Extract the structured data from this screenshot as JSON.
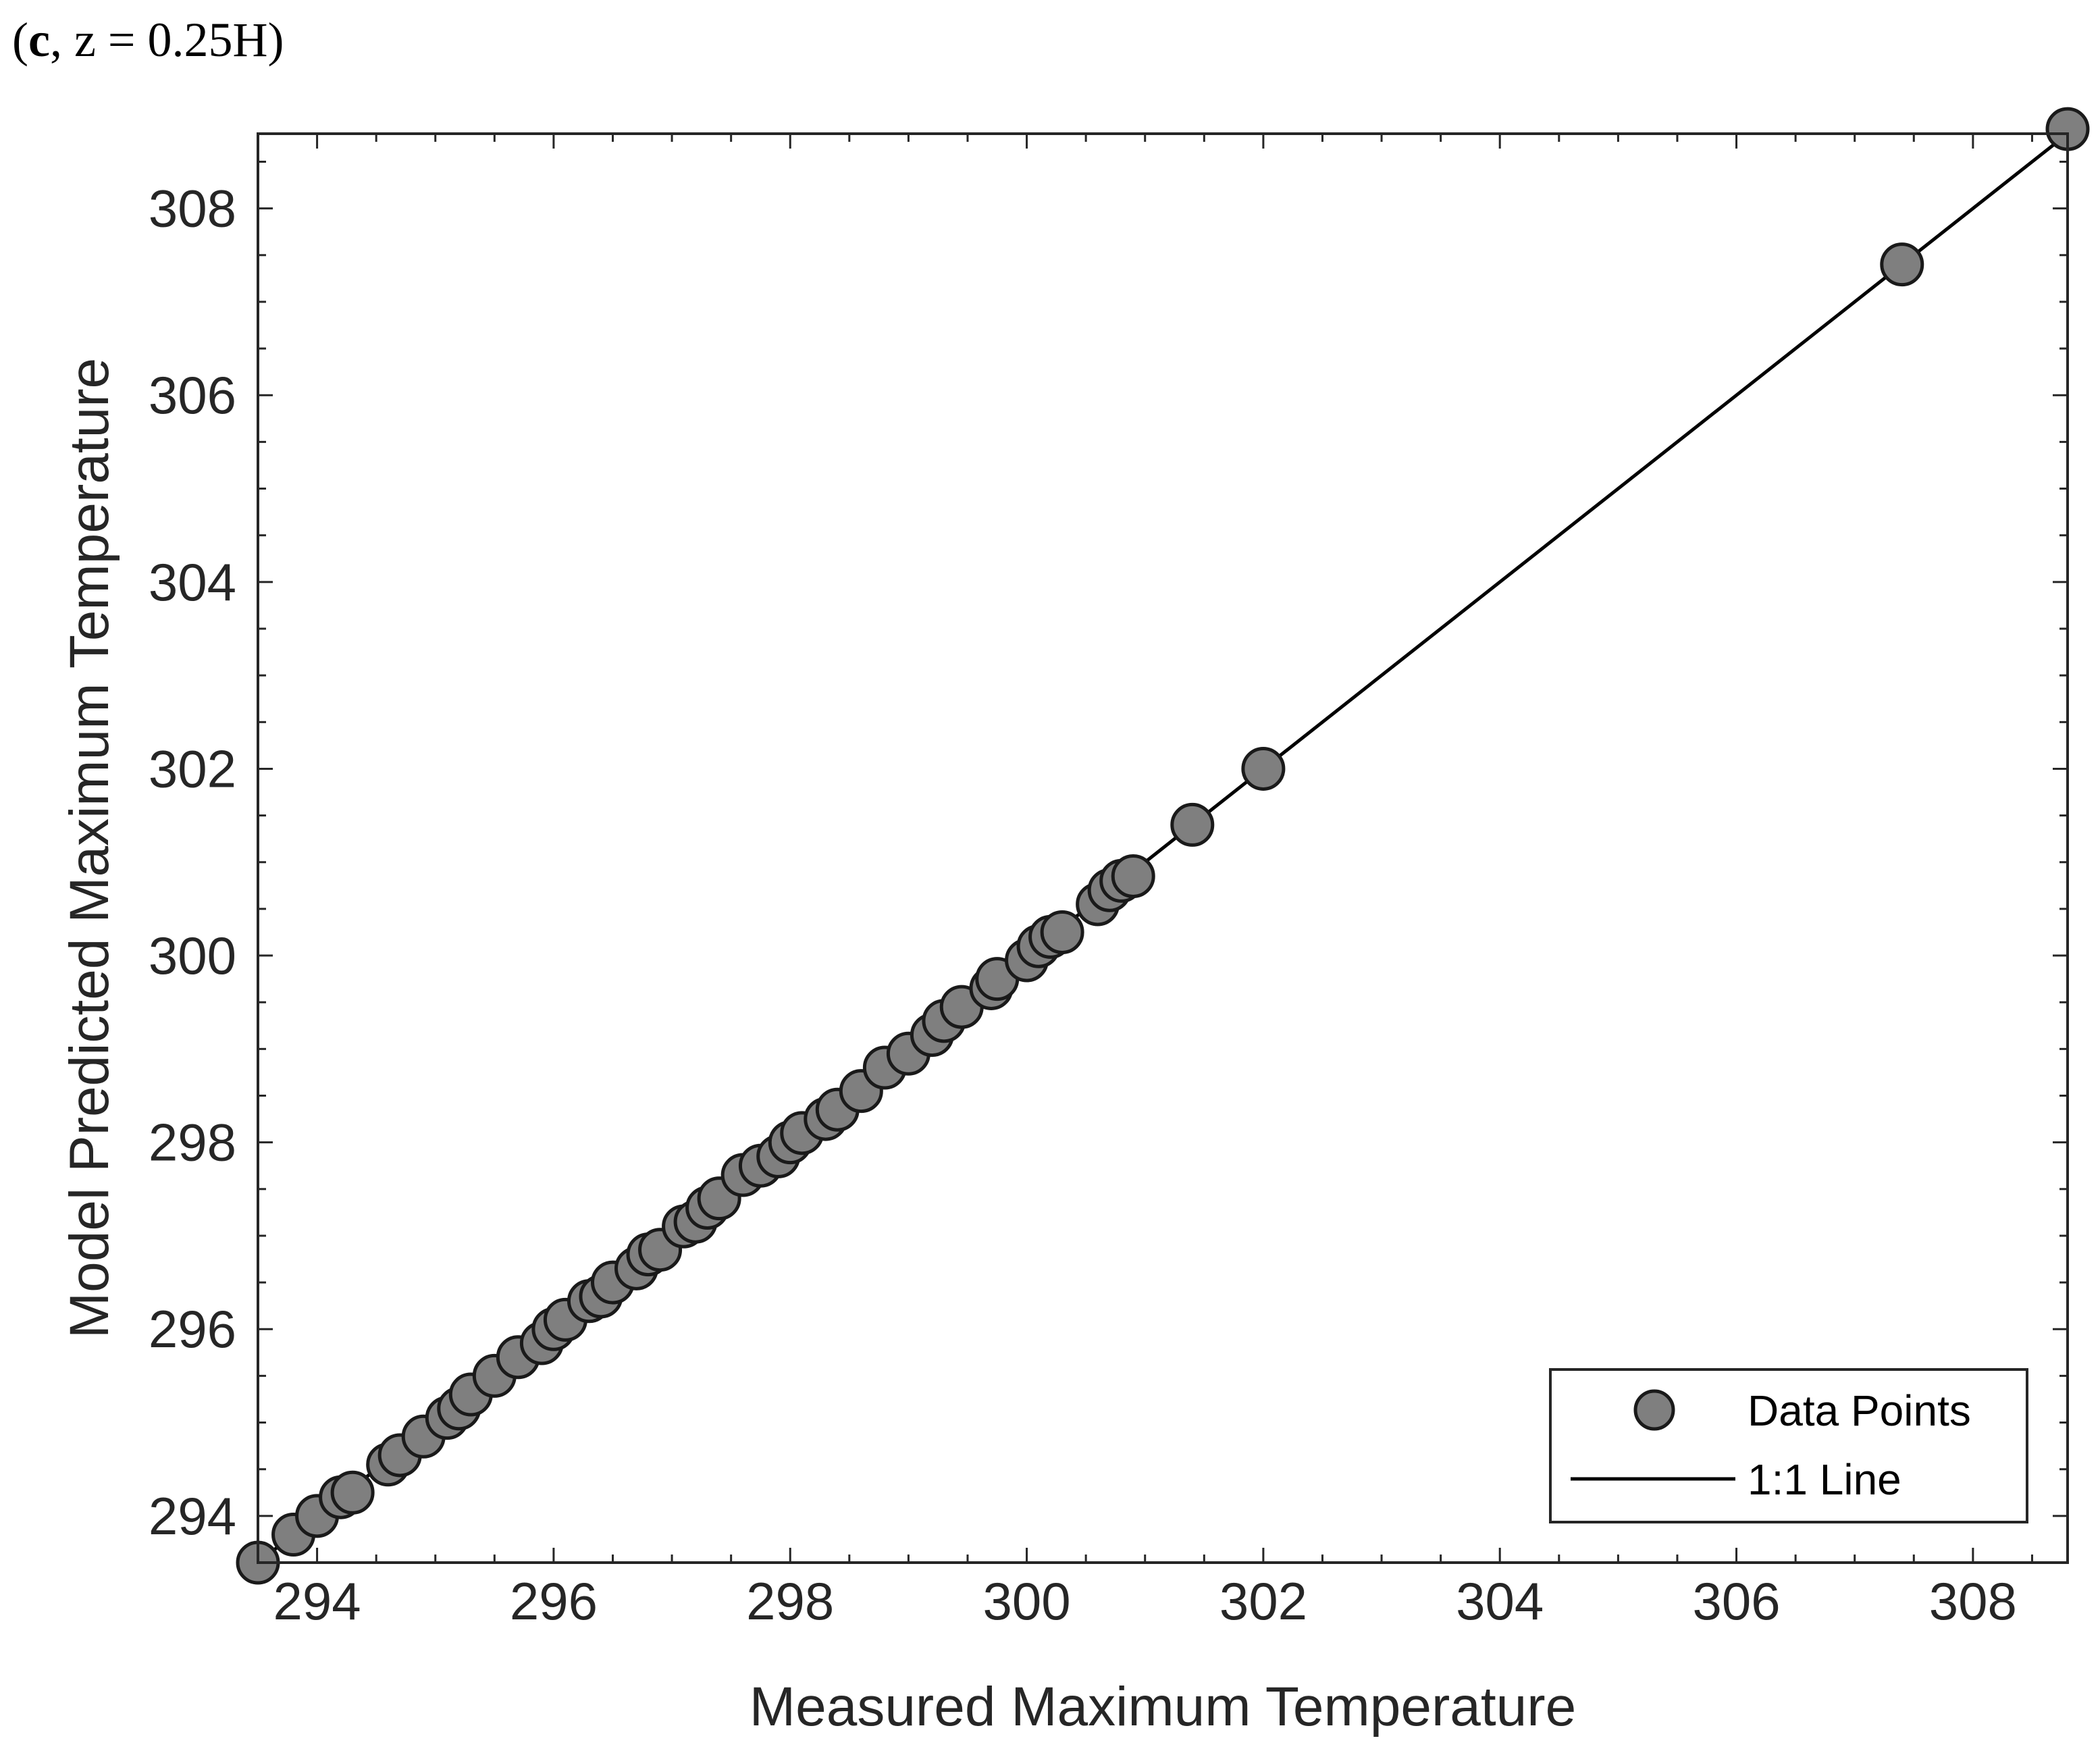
{
  "panel": {
    "letter": "c",
    "rest": ", z = 0.25H)",
    "open": "("
  },
  "chart_data": {
    "type": "scatter",
    "title": "",
    "xlabel": "Measured Maximum Temperature",
    "ylabel": "Model Predicted Maximum Temperature",
    "xlim": [
      293.5,
      308.8
    ],
    "ylim": [
      293.5,
      308.8
    ],
    "xticks": [
      294,
      296,
      298,
      300,
      302,
      304,
      306,
      308
    ],
    "yticks": [
      294,
      296,
      298,
      300,
      302,
      304,
      306,
      308
    ],
    "grid": false,
    "legend": {
      "position": "bottom-right",
      "entries": [
        "Data Points",
        "1:1 Line"
      ]
    },
    "colors": {
      "marker_fill": "#7f7f7f",
      "marker_edge": "#1a1a1a",
      "line": "#000000"
    },
    "series": [
      {
        "name": "Data Points",
        "kind": "scatter",
        "points": [
          [
            293.5,
            293.5
          ],
          [
            293.8,
            293.8
          ],
          [
            294.0,
            294.0
          ],
          [
            294.2,
            294.2
          ],
          [
            294.3,
            294.25
          ],
          [
            294.6,
            294.55
          ],
          [
            294.7,
            294.65
          ],
          [
            294.9,
            294.85
          ],
          [
            295.1,
            295.05
          ],
          [
            295.2,
            295.15
          ],
          [
            295.3,
            295.3
          ],
          [
            295.5,
            295.5
          ],
          [
            295.7,
            295.7
          ],
          [
            295.9,
            295.85
          ],
          [
            296.0,
            296.0
          ],
          [
            296.1,
            296.1
          ],
          [
            296.3,
            296.3
          ],
          [
            296.4,
            296.35
          ],
          [
            296.5,
            296.5
          ],
          [
            296.7,
            296.65
          ],
          [
            296.8,
            296.8
          ],
          [
            296.9,
            296.85
          ],
          [
            297.1,
            297.1
          ],
          [
            297.2,
            297.15
          ],
          [
            297.3,
            297.3
          ],
          [
            297.4,
            297.4
          ],
          [
            297.6,
            297.65
          ],
          [
            297.75,
            297.75
          ],
          [
            297.9,
            297.85
          ],
          [
            298.0,
            298.0
          ],
          [
            298.1,
            298.1
          ],
          [
            298.3,
            298.25
          ],
          [
            298.4,
            298.35
          ],
          [
            298.6,
            298.55
          ],
          [
            298.8,
            298.8
          ],
          [
            299.0,
            298.95
          ],
          [
            299.2,
            299.15
          ],
          [
            299.3,
            299.3
          ],
          [
            299.45,
            299.45
          ],
          [
            299.7,
            299.65
          ],
          [
            299.75,
            299.75
          ],
          [
            300.0,
            299.95
          ],
          [
            300.1,
            300.1
          ],
          [
            300.2,
            300.2
          ],
          [
            300.3,
            300.25
          ],
          [
            300.6,
            300.55
          ],
          [
            300.7,
            300.7
          ],
          [
            300.8,
            300.8
          ],
          [
            300.9,
            300.85
          ],
          [
            301.4,
            301.4
          ],
          [
            302.0,
            302.0
          ],
          [
            307.4,
            307.4
          ],
          [
            308.8,
            308.85
          ]
        ]
      },
      {
        "name": "1:1 Line",
        "kind": "line",
        "x": [
          293.5,
          308.8
        ],
        "y": [
          293.5,
          308.8
        ]
      }
    ]
  }
}
